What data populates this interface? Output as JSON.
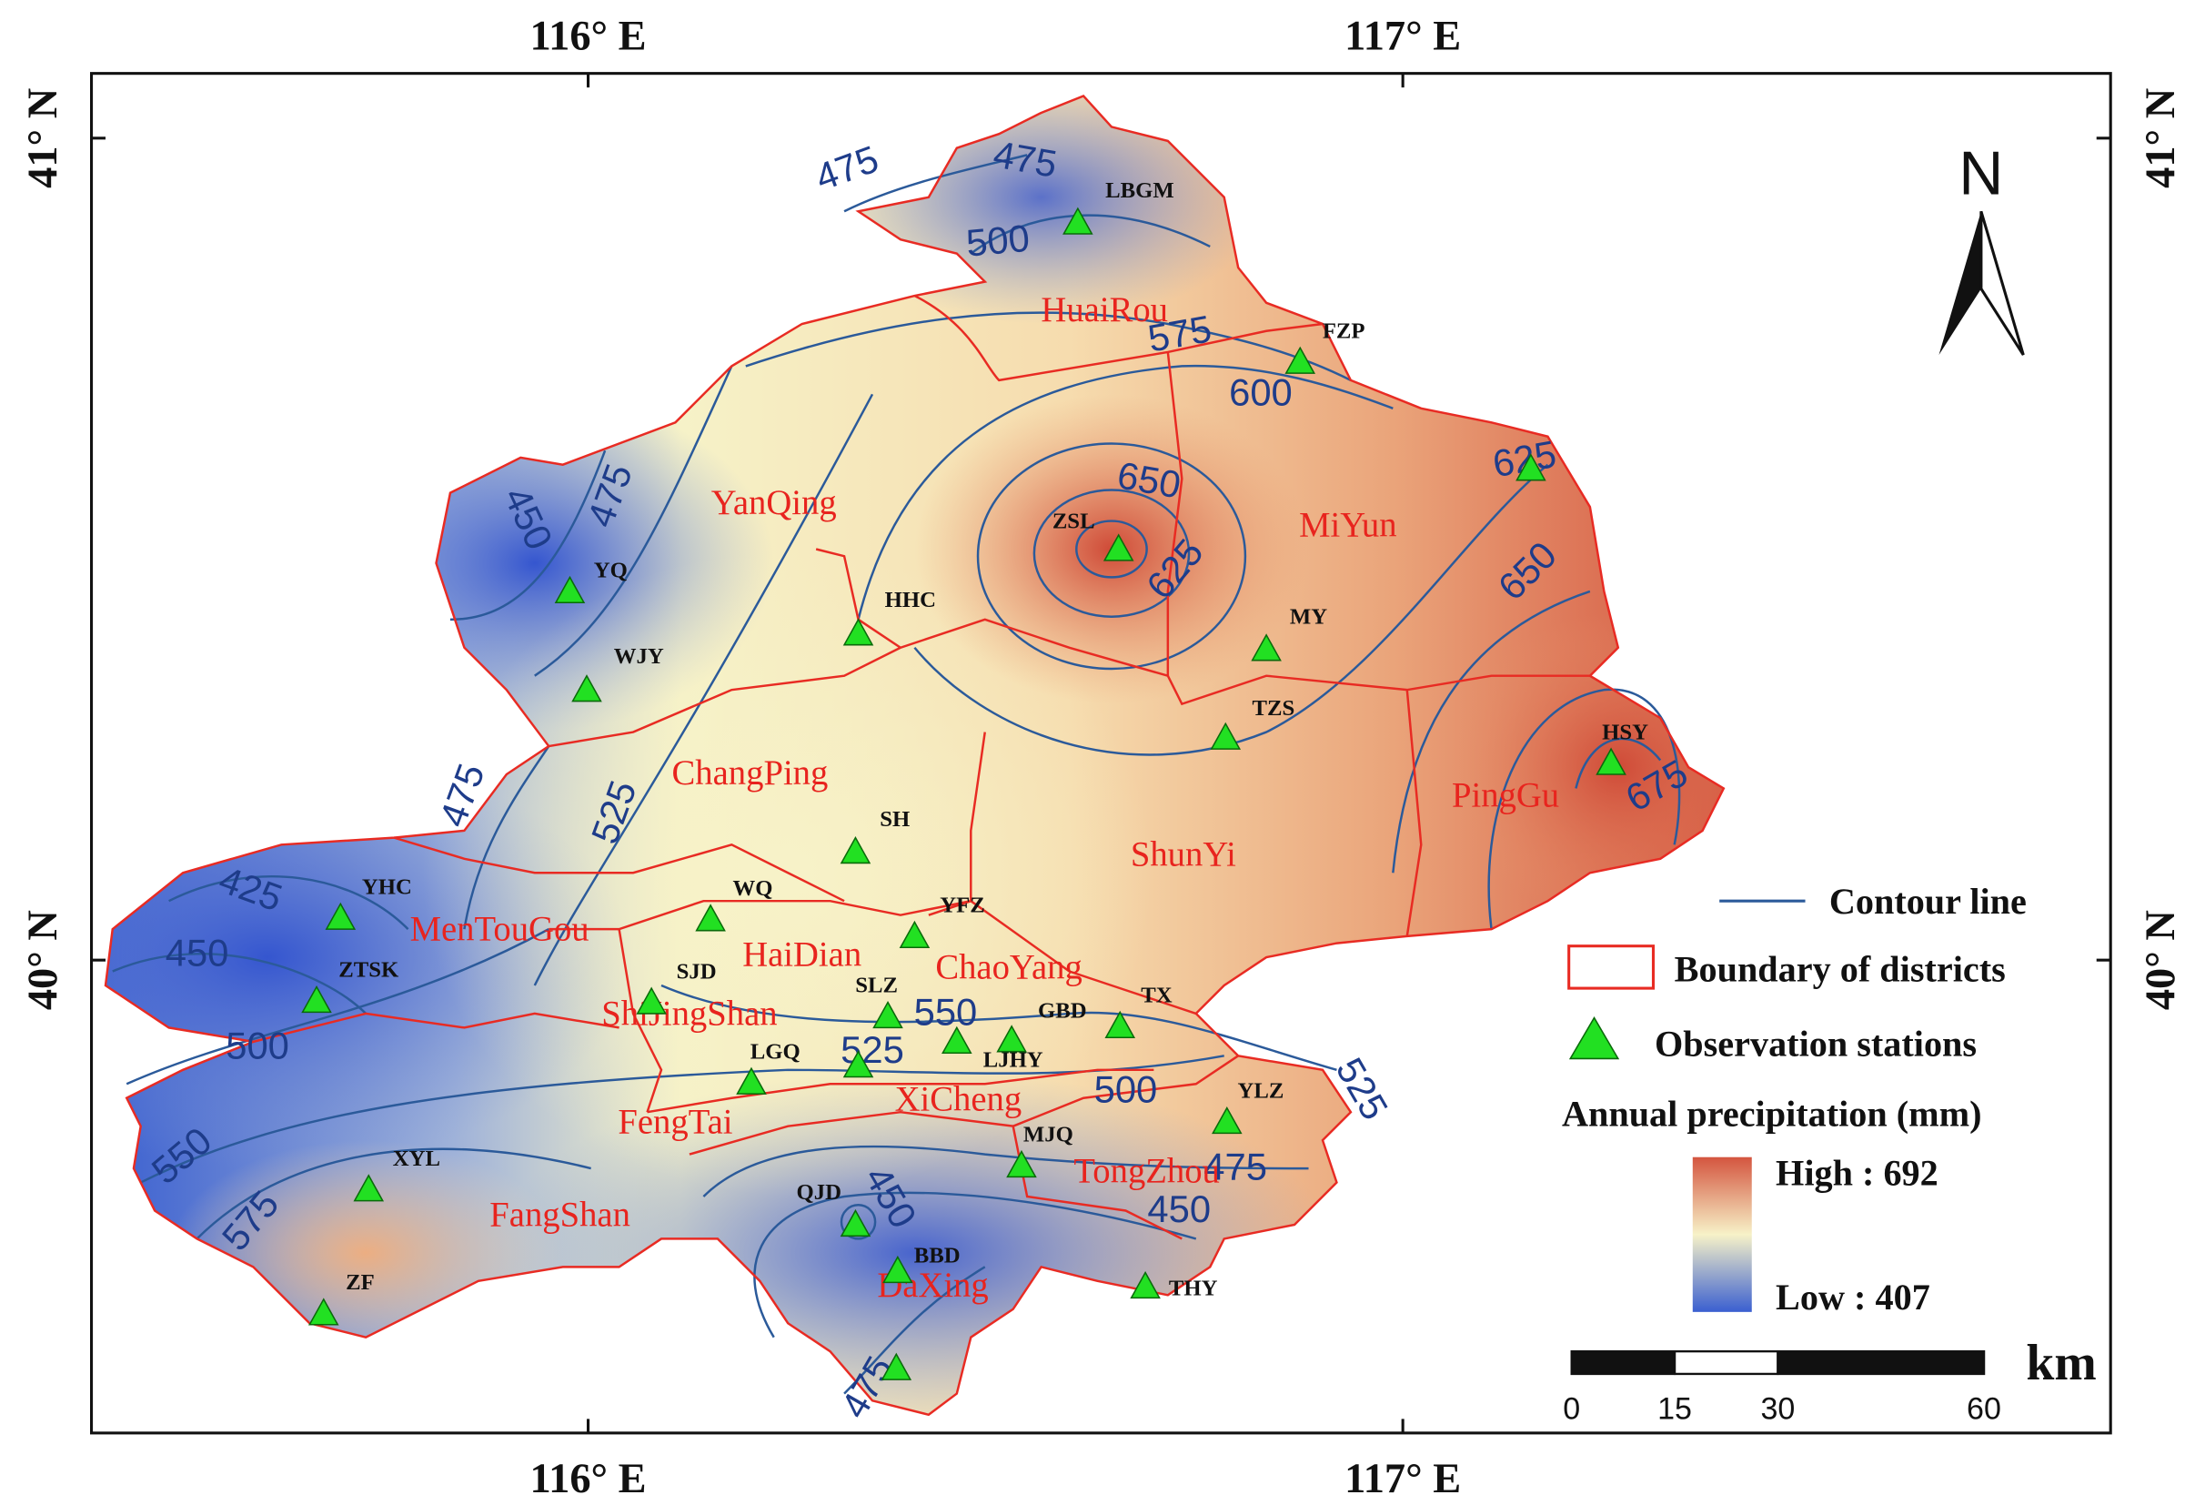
{
  "map": {
    "lon_labels": [
      "116° E",
      "117° E"
    ],
    "lat_labels": [
      "41° N",
      "40° N"
    ],
    "north": "N",
    "districts": [
      "HuaiRou",
      "YanQing",
      "MiYun",
      "ChangPing",
      "PingGu",
      "ShunYi",
      "MenTouGou",
      "HaiDian",
      "ChaoYang",
      "ShiJingShan",
      "FengTai",
      "XiCheng",
      "TongZhou",
      "FangShan",
      "DaXing"
    ],
    "stations": [
      "LBGM",
      "FZP",
      "ZSL",
      "MY",
      "HHC",
      "YQ",
      "WJY",
      "TZS",
      "HSY",
      "SH",
      "YHC",
      "WQ",
      "YFZ",
      "ZTSK",
      "SJD",
      "SLZ",
      "TX",
      "GBD",
      "LGQ",
      "LJHY",
      "YLZ",
      "MJQ",
      "XYL",
      "QJD",
      "BBD",
      "ZF",
      "THY"
    ],
    "contour_labels": [
      475,
      475,
      500,
      575,
      600,
      625,
      650,
      625,
      650,
      675,
      450,
      475,
      475,
      525,
      425,
      450,
      500,
      550,
      525,
      500,
      525,
      550,
      575,
      450,
      450,
      475,
      475
    ],
    "legend": {
      "contour": "Contour line",
      "boundary": "Boundary of districts",
      "stations": "Observation stations",
      "title": "Annual precipitation (mm)",
      "high": "High : 692",
      "low": "Low : 407"
    },
    "scale": {
      "ticks": [
        0,
        15,
        30,
        60
      ],
      "unit": "km"
    }
  }
}
